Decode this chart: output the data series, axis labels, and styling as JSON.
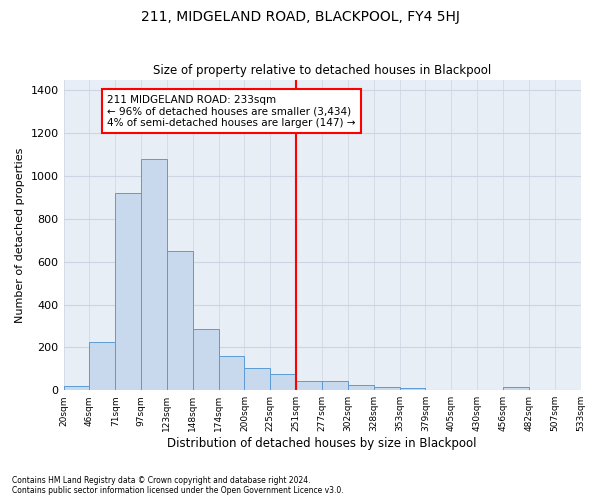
{
  "title": "211, MIDGELAND ROAD, BLACKPOOL, FY4 5HJ",
  "subtitle": "Size of property relative to detached houses in Blackpool",
  "xlabel": "Distribution of detached houses by size in Blackpool",
  "ylabel": "Number of detached properties",
  "bar_values": [
    20,
    225,
    920,
    1080,
    650,
    285,
    160,
    105,
    75,
    45,
    45,
    25,
    15,
    10,
    0,
    0,
    0,
    15,
    0,
    0
  ],
  "bar_labels": [
    "20sqm",
    "46sqm",
    "71sqm",
    "97sqm",
    "123sqm",
    "148sqm",
    "174sqm",
    "200sqm",
    "225sqm",
    "251sqm",
    "277sqm",
    "302sqm",
    "328sqm",
    "353sqm",
    "379sqm",
    "405sqm",
    "430sqm",
    "456sqm",
    "482sqm",
    "507sqm",
    "533sqm"
  ],
  "bar_color": "#c8d8ed",
  "bar_edge_color": "#5b9bd5",
  "vline_color": "red",
  "annotation_text": "211 MIDGELAND ROAD: 233sqm\n← 96% of detached houses are smaller (3,434)\n4% of semi-detached houses are larger (147) →",
  "annotation_box_color": "white",
  "annotation_box_edge": "red",
  "ylim": [
    0,
    1450
  ],
  "yticks": [
    0,
    200,
    400,
    600,
    800,
    1000,
    1200,
    1400
  ],
  "grid_color": "#cdd5e3",
  "bg_color": "#e8eef5",
  "footer1": "Contains HM Land Registry data © Crown copyright and database right 2024.",
  "footer2": "Contains public sector information licensed under the Open Government Licence v3.0."
}
